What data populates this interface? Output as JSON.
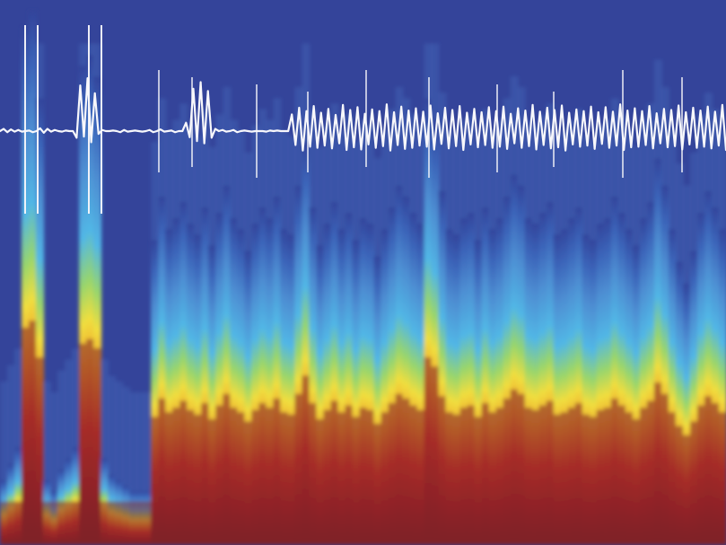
{
  "chart_data": {
    "type": "heatmap",
    "title": "",
    "xlabel": "",
    "ylabel": "",
    "axes_visible": false,
    "colormap": [
      "#32449b",
      "#3b64b9",
      "#4e8fd3",
      "#52b9e7",
      "#9ad86b",
      "#f4e13c",
      "#f39a22",
      "#d73a21",
      "#a62420",
      "#7c1f24"
    ],
    "background_color": "#34449a",
    "trace_color": "#f7f7fb",
    "columns": 101,
    "onset_rows": [
      100,
      100,
      100,
      100,
      100,
      100,
      100,
      100,
      100,
      100,
      100,
      100,
      100,
      100,
      100,
      100,
      100,
      100,
      100,
      100,
      100,
      100,
      100,
      100,
      100,
      100,
      100,
      100,
      100,
      100,
      100,
      100,
      100,
      100,
      100,
      100,
      100,
      100,
      100,
      100,
      100,
      100,
      100,
      100,
      100,
      100,
      100,
      100,
      100,
      100,
      100,
      100,
      100,
      100,
      100,
      100,
      100,
      100,
      100,
      100,
      100,
      100,
      100,
      100,
      100,
      100,
      100,
      100,
      100,
      100,
      100,
      100,
      100,
      100,
      100,
      100,
      100,
      100,
      100,
      100,
      100,
      100,
      100,
      100,
      100,
      100,
      100,
      100,
      100,
      100,
      100,
      100,
      100,
      100,
      100,
      100,
      100,
      100,
      100,
      100,
      100
    ],
    "intensity": [
      0.12,
      0.15,
      0.18,
      0.95,
      0.98,
      0.82,
      0.12,
      0.1,
      0.14,
      0.16,
      0.18,
      0.88,
      0.9,
      0.86,
      0.16,
      0.13,
      0.12,
      0.11,
      0.1,
      0.1,
      0.1,
      0.56,
      0.64,
      0.58,
      0.6,
      0.63,
      0.59,
      0.57,
      0.62,
      0.55,
      0.61,
      0.66,
      0.6,
      0.58,
      0.54,
      0.59,
      0.62,
      0.6,
      0.64,
      0.58,
      0.57,
      0.66,
      0.74,
      0.62,
      0.55,
      0.59,
      0.63,
      0.58,
      0.61,
      0.56,
      0.6,
      0.59,
      0.53,
      0.58,
      0.62,
      0.66,
      0.64,
      0.61,
      0.59,
      0.82,
      0.78,
      0.65,
      0.58,
      0.57,
      0.6,
      0.61,
      0.56,
      0.62,
      0.58,
      0.6,
      0.64,
      0.68,
      0.66,
      0.6,
      0.59,
      0.61,
      0.63,
      0.57,
      0.58,
      0.6,
      0.62,
      0.57,
      0.56,
      0.59,
      0.6,
      0.64,
      0.61,
      0.58,
      0.55,
      0.6,
      0.63,
      0.71,
      0.66,
      0.58,
      0.52,
      0.48,
      0.54,
      0.61,
      0.65,
      0.62,
      0.58
    ],
    "trace": [
      0.0,
      0.04,
      -0.02,
      0.03,
      -0.01,
      0.02,
      -0.01,
      0.0,
      0.01,
      -0.02,
      0.0,
      0.05,
      -0.03,
      0.04,
      -0.01,
      0.02,
      0.0,
      -0.01,
      0.01,
      0.0,
      0.0,
      -0.12,
      0.82,
      -0.1,
      0.95,
      -0.2,
      0.68,
      -0.05,
      0.02,
      0.0,
      0.0,
      0.01,
      0.0,
      -0.02,
      0.02,
      -0.01,
      0.0,
      0.01,
      0.0,
      -0.01,
      0.0,
      0.02,
      -0.02,
      0.0,
      0.03,
      -0.01,
      0.0,
      0.01,
      -0.02,
      0.0,
      0.0,
      0.15,
      -0.11,
      0.76,
      -0.18,
      0.88,
      -0.22,
      0.72,
      -0.12,
      0.04,
      0.0,
      0.02,
      -0.01,
      0.0,
      0.02,
      -0.02,
      0.0,
      0.01,
      0.0,
      -0.01,
      0.0,
      0.0,
      0.0,
      -0.01,
      0.01,
      0.0,
      0.01,
      0.0,
      0.0,
      0.0,
      0.3,
      -0.25,
      0.42,
      -0.35,
      0.36,
      -0.28,
      0.45,
      -0.3,
      0.33,
      -0.26,
      0.4,
      -0.31,
      0.29,
      -0.22,
      0.47,
      -0.34,
      0.38,
      -0.29,
      0.43,
      -0.33,
      0.31,
      -0.24,
      0.39,
      -0.3,
      0.36,
      -0.27,
      0.48,
      -0.35,
      0.34,
      -0.25,
      0.44,
      -0.32,
      0.37,
      -0.3,
      0.41,
      -0.26,
      0.35,
      -0.28,
      0.46,
      -0.33,
      0.32,
      -0.23,
      0.42,
      -0.31,
      0.38,
      -0.27,
      0.45,
      -0.34,
      0.33,
      -0.24,
      0.4,
      -0.29,
      0.34,
      -0.25,
      0.43,
      -0.3,
      0.36,
      -0.28,
      0.44,
      -0.32,
      0.31,
      -0.22,
      0.41,
      -0.3,
      0.37,
      -0.27,
      0.47,
      -0.33,
      0.35,
      -0.25,
      0.42,
      -0.31,
      0.38,
      -0.29,
      0.46,
      -0.35,
      0.33,
      -0.24,
      0.39,
      -0.28,
      0.36,
      -0.26,
      0.44,
      -0.32,
      0.34,
      -0.23,
      0.43,
      -0.3,
      0.35,
      -0.26,
      0.48,
      -0.34,
      0.37,
      -0.29,
      0.41,
      -0.28,
      0.36,
      -0.25,
      0.45,
      -0.31,
      0.32,
      -0.22,
      0.4,
      -0.29,
      0.38,
      -0.27,
      0.46,
      -0.33,
      0.34,
      -0.24,
      0.42,
      -0.3,
      0.37,
      -0.28,
      0.44,
      -0.31,
      0.35,
      -0.26,
      0.47,
      -0.34
    ]
  }
}
